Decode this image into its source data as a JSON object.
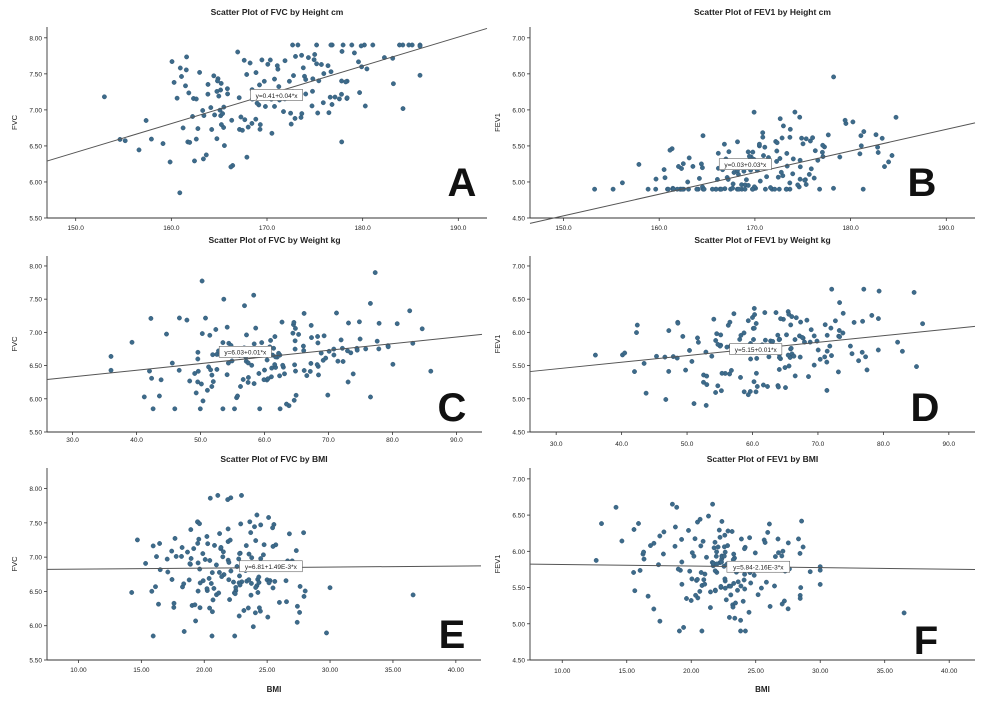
{
  "colors": {
    "point": "#3d6b8a",
    "point_stroke": "#2c5170",
    "line": "#555555",
    "axis": "#333333",
    "text": "#222222",
    "panel_letter": "#111111"
  },
  "chart_data": [
    {
      "id": "A",
      "type": "scatter",
      "title": "Scatter Plot of FVC by Height cm",
      "xlabel": "",
      "ylabel": "FVC",
      "xlim": [
        147,
        193
      ],
      "ylim": [
        5.5,
        8.15
      ],
      "xticks": [
        "150.0",
        "160.0",
        "170.0",
        "180.0",
        "190.0"
      ],
      "xtick_values": [
        150,
        160,
        170,
        180,
        190
      ],
      "yticks": [
        "5.50",
        "6.00",
        "6.50",
        "7.00",
        "7.50",
        "8.00"
      ],
      "ytick_values": [
        5.5,
        6.0,
        6.5,
        7.0,
        7.5,
        8.0
      ],
      "fit": {
        "intercept": 0.41,
        "slope": 0.04,
        "label": "y=0.41+0.04*x",
        "label_at": [
          171,
          7.2
        ]
      },
      "panel_letter": "A",
      "seed": 11,
      "n": 165,
      "spread": {
        "x_mean": 170,
        "x_sd": 6.5,
        "x_range": [
          153,
          186
        ],
        "resid_sd": 0.38,
        "y_range": [
          5.85,
          7.9
        ]
      }
    },
    {
      "id": "B",
      "type": "scatter",
      "title": "Scatter Plot of FEV1 by Height cm",
      "xlabel": "",
      "ylabel": "FEV1",
      "xlim": [
        146.5,
        193
      ],
      "ylim": [
        4.5,
        7.15
      ],
      "xticks": [
        "150.0",
        "160.0",
        "170.0",
        "180.0",
        "190.0"
      ],
      "xtick_values": [
        150,
        160,
        170,
        180,
        190
      ],
      "yticks": [
        "4.50",
        "5.00",
        "5.50",
        "6.00",
        "6.50",
        "7.00"
      ],
      "ytick_values": [
        4.5,
        5.0,
        5.5,
        6.0,
        6.5,
        7.0
      ],
      "fit": {
        "intercept": 0.03,
        "slope": 0.03,
        "label": "y=0.03+0.03*x",
        "label_at": [
          169,
          5.24
        ]
      },
      "panel_letter": "B",
      "seed": 23,
      "n": 165,
      "spread": {
        "x_mean": 170,
        "x_sd": 6.5,
        "x_range": [
          153,
          186
        ],
        "resid_sd": 0.33,
        "y_range": [
          4.9,
          6.65
        ]
      }
    },
    {
      "id": "C",
      "type": "scatter",
      "title": "Scatter Plot of FVC by Weight kg",
      "xlabel": "",
      "ylabel": "FVC",
      "xlim": [
        26,
        94
      ],
      "ylim": [
        5.5,
        8.15
      ],
      "xticks": [
        "30.0",
        "40.0",
        "50.0",
        "60.0",
        "70.0",
        "80.0",
        "90.0"
      ],
      "xtick_values": [
        30,
        40,
        50,
        60,
        70,
        80,
        90
      ],
      "yticks": [
        "5.50",
        "6.00",
        "6.50",
        "7.00",
        "7.50",
        "8.00"
      ],
      "ytick_values": [
        5.5,
        6.0,
        6.5,
        7.0,
        7.5,
        8.0
      ],
      "fit": {
        "intercept": 6.03,
        "slope": 0.01,
        "label": "y=6.03+0.01*x",
        "label_at": [
          57,
          6.7
        ]
      },
      "panel_letter": "C",
      "seed": 37,
      "n": 165,
      "spread": {
        "x_mean": 62,
        "x_sd": 10,
        "x_range": [
          36,
          86
        ],
        "resid_sd": 0.4,
        "y_range": [
          5.85,
          7.9
        ]
      }
    },
    {
      "id": "D",
      "type": "scatter",
      "title": "Scatter Plot of FEV1 by Weight kg",
      "xlabel": "",
      "ylabel": "FEV1",
      "xlim": [
        26,
        94
      ],
      "ylim": [
        4.5,
        7.15
      ],
      "xticks": [
        "30.0",
        "40.0",
        "50.0",
        "60.0",
        "70.0",
        "80.0",
        "90.0"
      ],
      "xtick_values": [
        30,
        40,
        50,
        60,
        70,
        80,
        90
      ],
      "yticks": [
        "4.50",
        "5.00",
        "5.50",
        "6.00",
        "6.50",
        "7.00"
      ],
      "ytick_values": [
        4.5,
        5.0,
        5.5,
        6.0,
        6.5,
        7.0
      ],
      "fit": {
        "intercept": 5.15,
        "slope": 0.01,
        "label": "y=5.15+0.01*x",
        "label_at": [
          60.5,
          5.74
        ]
      },
      "panel_letter": "D",
      "seed": 53,
      "n": 165,
      "spread": {
        "x_mean": 62,
        "x_sd": 10,
        "x_range": [
          36,
          86
        ],
        "resid_sd": 0.34,
        "y_range": [
          4.9,
          6.65
        ]
      }
    },
    {
      "id": "E",
      "type": "scatter",
      "title": "Scatter Plot of FVC by BMI",
      "xlabel": "BMI",
      "ylabel": "FVC",
      "xlim": [
        7.5,
        42
      ],
      "ylim": [
        5.5,
        8.3
      ],
      "xticks": [
        "10.00",
        "15.00",
        "20.00",
        "25.00",
        "30.00",
        "35.00",
        "40.00"
      ],
      "xtick_values": [
        10,
        15,
        20,
        25,
        30,
        35,
        40
      ],
      "yticks": [
        "5.50",
        "6.00",
        "6.50",
        "7.00",
        "7.50",
        "8.00"
      ],
      "ytick_values": [
        5.5,
        6.0,
        6.5,
        7.0,
        7.5,
        8.0
      ],
      "fit": {
        "intercept": 6.81,
        "slope": 0.00149,
        "label": "y=6.81+1.49E-3*x",
        "label_at": [
          25.3,
          6.86
        ]
      },
      "panel_letter": "E",
      "seed": 71,
      "n": 165,
      "spread": {
        "x_mean": 22,
        "x_sd": 3.5,
        "x_range": [
          12,
          30
        ],
        "resid_sd": 0.45,
        "y_range": [
          5.85,
          7.9
        ]
      },
      "extra_points": [
        [
          36.6,
          6.45
        ]
      ]
    },
    {
      "id": "F",
      "type": "scatter",
      "title": "Scatter Plot of FEV1 by BMI",
      "xlabel": "BMI",
      "ylabel": "FEV1",
      "xlim": [
        7.5,
        42
      ],
      "ylim": [
        4.5,
        7.15
      ],
      "xticks": [
        "10.00",
        "15.00",
        "20.00",
        "25.00",
        "30.00",
        "35.00",
        "40.00"
      ],
      "xtick_values": [
        10,
        15,
        20,
        25,
        30,
        35,
        40
      ],
      "yticks": [
        "4.50",
        "5.00",
        "5.50",
        "6.00",
        "6.50",
        "7.00"
      ],
      "ytick_values": [
        4.5,
        5.0,
        5.5,
        6.0,
        6.5,
        7.0
      ],
      "fit": {
        "intercept": 5.84,
        "slope": -0.00216,
        "label": "y=5.84-2.16E-3*x",
        "label_at": [
          25.2,
          5.78
        ]
      },
      "panel_letter": "F",
      "seed": 89,
      "n": 165,
      "spread": {
        "x_mean": 22,
        "x_sd": 3.5,
        "x_range": [
          12,
          30
        ],
        "resid_sd": 0.38,
        "y_range": [
          4.9,
          6.65
        ]
      },
      "extra_points": [
        [
          36.5,
          5.15
        ]
      ]
    }
  ]
}
